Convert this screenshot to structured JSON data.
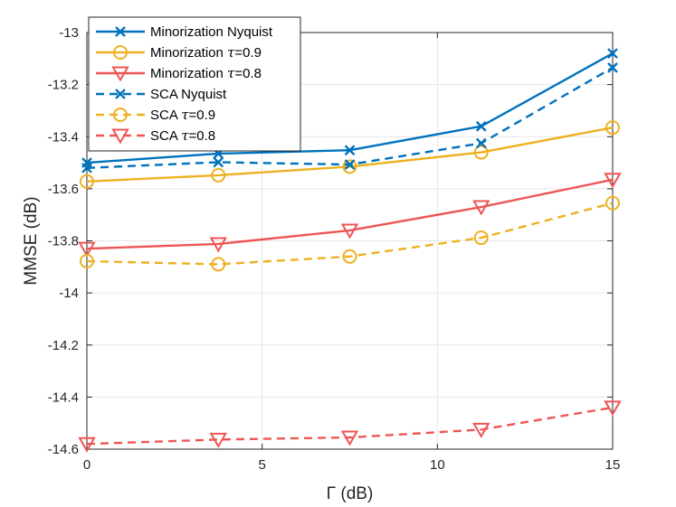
{
  "chart_data": {
    "type": "line",
    "title": "",
    "xlabel": "Γ (dB)",
    "ylabel": "MMSE (dB)",
    "xlim": [
      0,
      15
    ],
    "ylim": [
      -14.6,
      -13
    ],
    "xticks": [
      0,
      5,
      10,
      15
    ],
    "xtick_labels": [
      "0",
      "5",
      "10",
      "15"
    ],
    "yticks": [
      -14.6,
      -14.4,
      -14.2,
      -14,
      -13.8,
      -13.6,
      -13.4,
      -13.2,
      -13
    ],
    "ytick_labels": [
      "-14.6",
      "-14.4",
      "-14.2",
      "-14",
      "-13.8",
      "-13.6",
      "-13.4",
      "-13.2",
      "-13"
    ],
    "grid": true,
    "legend_position": "top-left",
    "x": [
      0,
      3.75,
      7.5,
      11.25,
      15
    ],
    "series": [
      {
        "name": "Minorization Nyquist",
        "prefix": "Minorization Nyquist",
        "tau": "",
        "suffix": "",
        "color": "#0072BD",
        "dash": "solid",
        "marker": "x",
        "values": [
          -13.5,
          -13.465,
          -13.452,
          -13.36,
          -13.08
        ]
      },
      {
        "name": "Minorization τ=0.9",
        "prefix": "Minorization ",
        "tau": "τ",
        "suffix": "=0.9",
        "color": "#EDB120",
        "dash": "solid",
        "marker": "o",
        "values": [
          -13.572,
          -13.548,
          -13.515,
          -13.46,
          -13.365
        ]
      },
      {
        "name": "Minorization τ=0.8",
        "prefix": "Minorization ",
        "tau": "τ",
        "suffix": "=0.8",
        "color": "#EE5555",
        "dash": "solid",
        "marker": "v",
        "values": [
          -13.83,
          -13.812,
          -13.76,
          -13.67,
          -13.565
        ]
      },
      {
        "name": "SCA Nyquist",
        "prefix": "SCA Nyquist",
        "tau": "",
        "suffix": "",
        "color": "#0072BD",
        "dash": "dashed",
        "marker": "x",
        "values": [
          -13.52,
          -13.498,
          -13.507,
          -13.425,
          -13.135
        ]
      },
      {
        "name": "SCA τ=0.9",
        "prefix": "SCA ",
        "tau": "τ",
        "suffix": "=0.9",
        "color": "#EDB120",
        "dash": "dashed",
        "marker": "o",
        "values": [
          -13.878,
          -13.89,
          -13.86,
          -13.788,
          -13.655
        ]
      },
      {
        "name": "SCA τ=0.8",
        "prefix": "SCA ",
        "tau": "τ",
        "suffix": "=0.8",
        "color": "#EE5555",
        "dash": "dashed",
        "marker": "v",
        "values": [
          -14.58,
          -14.563,
          -14.555,
          -14.525,
          -14.44
        ]
      }
    ]
  }
}
